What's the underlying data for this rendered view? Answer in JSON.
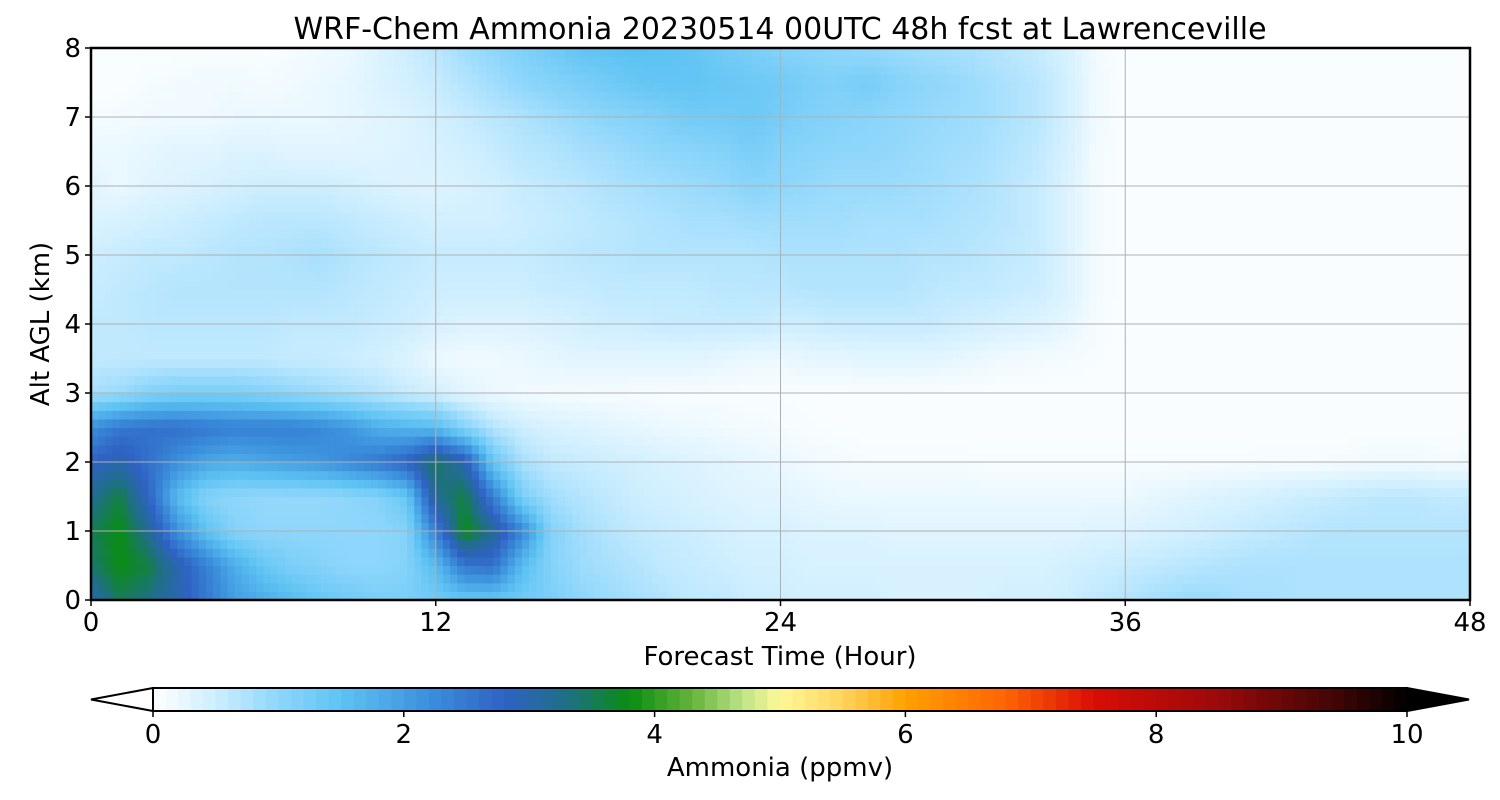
{
  "chart_data": {
    "type": "heatmap",
    "title": "WRF-Chem Ammonia  20230514 00UTC 48h fcst at Lawrenceville",
    "xlabel": "Forecast Time (Hour)",
    "ylabel": "Alt AGL (km)",
    "xlim": [
      0,
      48
    ],
    "ylim": [
      0,
      8
    ],
    "xticks": [
      0,
      12,
      24,
      36,
      48
    ],
    "yticks": [
      0,
      1,
      2,
      3,
      4,
      5,
      6,
      7,
      8
    ],
    "grid": true,
    "colorbar": {
      "label": "Ammonia  (ppmv)",
      "range": [
        0,
        10
      ],
      "ticks": [
        0,
        2,
        4,
        6,
        8,
        10
      ],
      "extend": "both",
      "orientation": "horizontal",
      "placement": "bottom",
      "color_stops": [
        {
          "value": 0.0,
          "color": "#ffffff"
        },
        {
          "value": 0.5,
          "color": "#cdeeff"
        },
        {
          "value": 1.0,
          "color": "#8ed6fb"
        },
        {
          "value": 1.5,
          "color": "#5ec3f3"
        },
        {
          "value": 2.2,
          "color": "#3b8fdc"
        },
        {
          "value": 2.8,
          "color": "#2f62c4"
        },
        {
          "value": 3.3,
          "color": "#1f6f86"
        },
        {
          "value": 3.8,
          "color": "#0a8d13"
        },
        {
          "value": 4.3,
          "color": "#65b33b"
        },
        {
          "value": 4.7,
          "color": "#bde386"
        },
        {
          "value": 5.0,
          "color": "#fff897"
        },
        {
          "value": 5.5,
          "color": "#ffd45e"
        },
        {
          "value": 6.0,
          "color": "#ffa100"
        },
        {
          "value": 6.8,
          "color": "#ff6405"
        },
        {
          "value": 7.5,
          "color": "#d90d05"
        },
        {
          "value": 8.5,
          "color": "#9a0a0a"
        },
        {
          "value": 9.5,
          "color": "#3a0505"
        },
        {
          "value": 10.0,
          "color": "#000000"
        }
      ]
    },
    "x": [
      0,
      1,
      2,
      3,
      4,
      5,
      6,
      7,
      8,
      9,
      10,
      11,
      12,
      13,
      14,
      15,
      16,
      17,
      18,
      19,
      20,
      21,
      22,
      23,
      24,
      25,
      26,
      27,
      28,
      29,
      30,
      31,
      32,
      33,
      34,
      35,
      36,
      37,
      38,
      39,
      40,
      41,
      42,
      43,
      44,
      45,
      46,
      47,
      48
    ],
    "y": [
      0,
      0.5,
      1.0,
      1.5,
      2.0,
      2.5,
      3.0,
      3.5,
      4.0,
      4.5,
      5.0,
      5.5,
      6.0,
      6.5,
      7.0,
      7.5,
      8.0
    ],
    "z": [
      [
        3.0,
        3.5,
        3.3,
        3.0,
        2.5,
        2.0,
        1.8,
        1.6,
        1.4,
        1.3,
        1.2,
        1.2,
        1.3,
        1.4,
        1.4,
        1.3,
        1.2,
        1.0,
        0.9,
        0.8,
        0.7,
        0.6,
        0.6,
        0.5,
        0.5,
        0.45,
        0.45,
        0.45,
        0.4,
        0.4,
        0.4,
        0.4,
        0.45,
        0.45,
        0.5,
        0.6,
        0.7,
        0.8,
        0.9,
        0.9,
        0.8,
        0.8,
        0.75,
        0.75,
        0.75,
        0.75,
        0.75,
        0.75,
        0.75
      ],
      [
        3.4,
        3.8,
        3.6,
        3.0,
        2.4,
        1.8,
        1.4,
        1.2,
        1.1,
        1.0,
        1.0,
        1.1,
        1.6,
        2.5,
        2.6,
        1.6,
        1.1,
        0.9,
        0.8,
        0.7,
        0.6,
        0.55,
        0.5,
        0.45,
        0.45,
        0.4,
        0.4,
        0.4,
        0.4,
        0.4,
        0.4,
        0.4,
        0.4,
        0.4,
        0.45,
        0.5,
        0.55,
        0.6,
        0.65,
        0.7,
        0.75,
        0.75,
        0.75,
        0.75,
        0.75,
        0.75,
        0.75,
        0.75,
        0.75
      ],
      [
        3.5,
        3.8,
        3.2,
        2.2,
        1.5,
        1.1,
        1.0,
        1.0,
        1.0,
        1.0,
        1.0,
        1.1,
        2.4,
        3.8,
        3.2,
        2.3,
        1.1,
        0.85,
        0.7,
        0.6,
        0.55,
        0.5,
        0.45,
        0.4,
        0.4,
        0.35,
        0.35,
        0.35,
        0.3,
        0.3,
        0.3,
        0.3,
        0.3,
        0.3,
        0.3,
        0.35,
        0.35,
        0.4,
        0.45,
        0.5,
        0.55,
        0.6,
        0.65,
        0.7,
        0.7,
        0.7,
        0.7,
        0.7,
        0.7
      ],
      [
        3.2,
        3.6,
        2.8,
        1.6,
        1.1,
        1.0,
        0.95,
        0.95,
        0.95,
        1.0,
        1.1,
        1.4,
        3.2,
        3.6,
        2.4,
        1.2,
        0.85,
        0.7,
        0.6,
        0.5,
        0.45,
        0.4,
        0.35,
        0.3,
        0.3,
        0.25,
        0.2,
        0.2,
        0.2,
        0.2,
        0.2,
        0.2,
        0.2,
        0.2,
        0.2,
        0.2,
        0.2,
        0.25,
        0.3,
        0.35,
        0.4,
        0.45,
        0.5,
        0.55,
        0.6,
        0.65,
        0.65,
        0.6,
        0.6
      ],
      [
        2.8,
        3.0,
        2.6,
        2.2,
        1.9,
        1.8,
        1.9,
        2.0,
        2.1,
        2.3,
        2.5,
        2.8,
        3.5,
        3.0,
        1.4,
        0.8,
        0.6,
        0.55,
        0.5,
        0.45,
        0.4,
        0.35,
        0.3,
        0.25,
        0.2,
        0.15,
        0.12,
        0.1,
        0.1,
        0.1,
        0.1,
        0.08,
        0.08,
        0.08,
        0.08,
        0.08,
        0.08,
        0.08,
        0.08,
        0.08,
        0.08,
        0.1,
        0.1,
        0.1,
        0.12,
        0.15,
        0.15,
        0.12,
        0.12
      ],
      [
        2.2,
        2.5,
        2.6,
        2.6,
        2.5,
        2.4,
        2.4,
        2.4,
        2.3,
        2.1,
        1.8,
        1.7,
        1.6,
        1.1,
        0.7,
        0.5,
        0.4,
        0.35,
        0.3,
        0.25,
        0.2,
        0.18,
        0.15,
        0.12,
        0.1,
        0.08,
        0.06,
        0.05,
        0.05,
        0.05,
        0.05,
        0.05,
        0.05,
        0.05,
        0.05,
        0.05,
        0.05,
        0.05,
        0.05,
        0.05,
        0.05,
        0.05,
        0.05,
        0.05,
        0.05,
        0.05,
        0.05,
        0.05,
        0.05
      ],
      [
        0.8,
        0.9,
        1.1,
        1.2,
        1.2,
        1.2,
        1.1,
        1.0,
        0.9,
        0.8,
        0.7,
        0.55,
        0.45,
        0.3,
        0.2,
        0.15,
        0.12,
        0.1,
        0.1,
        0.08,
        0.08,
        0.08,
        0.08,
        0.07,
        0.07,
        0.06,
        0.05,
        0.05,
        0.05,
        0.05,
        0.05,
        0.05,
        0.05,
        0.05,
        0.05,
        0.05,
        0.05,
        0.05,
        0.05,
        0.05,
        0.05,
        0.05,
        0.05,
        0.05,
        0.05,
        0.05,
        0.05,
        0.05,
        0.05
      ],
      [
        0.6,
        0.6,
        0.6,
        0.6,
        0.6,
        0.6,
        0.6,
        0.55,
        0.55,
        0.5,
        0.45,
        0.35,
        0.2,
        0.15,
        0.15,
        0.2,
        0.25,
        0.3,
        0.3,
        0.3,
        0.3,
        0.3,
        0.25,
        0.2,
        0.2,
        0.25,
        0.25,
        0.3,
        0.3,
        0.3,
        0.25,
        0.2,
        0.15,
        0.12,
        0.1,
        0.08,
        0.05,
        0.05,
        0.05,
        0.05,
        0.05,
        0.05,
        0.05,
        0.05,
        0.05,
        0.05,
        0.05,
        0.05,
        0.05
      ],
      [
        0.6,
        0.6,
        0.65,
        0.65,
        0.65,
        0.65,
        0.65,
        0.6,
        0.6,
        0.6,
        0.55,
        0.5,
        0.4,
        0.35,
        0.35,
        0.35,
        0.4,
        0.45,
        0.5,
        0.5,
        0.55,
        0.55,
        0.55,
        0.55,
        0.5,
        0.5,
        0.55,
        0.55,
        0.55,
        0.55,
        0.5,
        0.45,
        0.4,
        0.35,
        0.25,
        0.1,
        0.05,
        0.05,
        0.05,
        0.05,
        0.05,
        0.05,
        0.05,
        0.05,
        0.05,
        0.05,
        0.05,
        0.05,
        0.05
      ],
      [
        0.55,
        0.6,
        0.65,
        0.7,
        0.7,
        0.7,
        0.7,
        0.7,
        0.7,
        0.65,
        0.6,
        0.55,
        0.5,
        0.5,
        0.5,
        0.5,
        0.55,
        0.55,
        0.6,
        0.6,
        0.6,
        0.6,
        0.65,
        0.65,
        0.65,
        0.7,
        0.7,
        0.7,
        0.7,
        0.65,
        0.6,
        0.6,
        0.55,
        0.5,
        0.35,
        0.12,
        0.05,
        0.05,
        0.05,
        0.05,
        0.05,
        0.05,
        0.05,
        0.05,
        0.05,
        0.05,
        0.05,
        0.05,
        0.05
      ],
      [
        0.5,
        0.55,
        0.6,
        0.6,
        0.65,
        0.7,
        0.7,
        0.75,
        0.8,
        0.7,
        0.65,
        0.6,
        0.55,
        0.55,
        0.55,
        0.55,
        0.6,
        0.65,
        0.65,
        0.7,
        0.7,
        0.7,
        0.7,
        0.7,
        0.75,
        0.75,
        0.75,
        0.75,
        0.75,
        0.7,
        0.7,
        0.65,
        0.6,
        0.55,
        0.35,
        0.12,
        0.05,
        0.05,
        0.05,
        0.05,
        0.05,
        0.05,
        0.05,
        0.05,
        0.05,
        0.05,
        0.05,
        0.05,
        0.05
      ],
      [
        0.35,
        0.4,
        0.45,
        0.5,
        0.55,
        0.6,
        0.65,
        0.65,
        0.65,
        0.6,
        0.55,
        0.5,
        0.45,
        0.45,
        0.45,
        0.5,
        0.55,
        0.6,
        0.65,
        0.7,
        0.75,
        0.8,
        0.8,
        0.85,
        0.85,
        0.85,
        0.85,
        0.8,
        0.8,
        0.8,
        0.75,
        0.7,
        0.65,
        0.55,
        0.35,
        0.12,
        0.05,
        0.05,
        0.05,
        0.05,
        0.05,
        0.05,
        0.05,
        0.05,
        0.05,
        0.05,
        0.05,
        0.05,
        0.05
      ],
      [
        0.3,
        0.2,
        0.3,
        0.35,
        0.4,
        0.45,
        0.5,
        0.5,
        0.5,
        0.45,
        0.4,
        0.35,
        0.35,
        0.4,
        0.45,
        0.55,
        0.6,
        0.65,
        0.75,
        0.8,
        0.85,
        0.9,
        0.95,
        1.05,
        1.0,
        0.95,
        0.9,
        0.9,
        0.9,
        0.85,
        0.8,
        0.75,
        0.65,
        0.55,
        0.35,
        0.12,
        0.05,
        0.05,
        0.05,
        0.05,
        0.05,
        0.05,
        0.05,
        0.05,
        0.05,
        0.05,
        0.05,
        0.05,
        0.05
      ],
      [
        0.2,
        0.2,
        0.25,
        0.3,
        0.3,
        0.35,
        0.35,
        0.3,
        0.3,
        0.3,
        0.3,
        0.35,
        0.4,
        0.45,
        0.55,
        0.65,
        0.7,
        0.8,
        0.85,
        0.95,
        1.0,
        1.05,
        1.1,
        1.2,
        1.1,
        1.05,
        1.0,
        1.0,
        0.95,
        0.9,
        0.85,
        0.8,
        0.7,
        0.6,
        0.4,
        0.12,
        0.05,
        0.05,
        0.05,
        0.05,
        0.05,
        0.05,
        0.05,
        0.05,
        0.05,
        0.05,
        0.05,
        0.05,
        0.05
      ],
      [
        0.1,
        0.12,
        0.15,
        0.15,
        0.15,
        0.2,
        0.2,
        0.2,
        0.2,
        0.25,
        0.3,
        0.35,
        0.45,
        0.55,
        0.65,
        0.75,
        0.85,
        0.95,
        1.05,
        1.1,
        1.2,
        1.3,
        1.3,
        1.35,
        1.25,
        1.15,
        1.1,
        1.05,
        1.0,
        0.95,
        0.9,
        0.85,
        0.75,
        0.65,
        0.45,
        0.15,
        0.05,
        0.05,
        0.05,
        0.05,
        0.05,
        0.05,
        0.05,
        0.05,
        0.05,
        0.05,
        0.05,
        0.05,
        0.05
      ],
      [
        0.05,
        0.05,
        0.1,
        0.12,
        0.15,
        0.15,
        0.12,
        0.15,
        0.2,
        0.25,
        0.35,
        0.45,
        0.55,
        0.7,
        0.85,
        1.0,
        1.1,
        1.2,
        1.3,
        1.4,
        1.45,
        1.45,
        1.4,
        1.35,
        1.3,
        1.2,
        1.15,
        1.25,
        1.1,
        1.0,
        0.95,
        0.85,
        0.75,
        0.65,
        0.45,
        0.15,
        0.05,
        0.05,
        0.05,
        0.05,
        0.05,
        0.05,
        0.05,
        0.05,
        0.05,
        0.05,
        0.05,
        0.05,
        0.05
      ],
      [
        0.05,
        0.05,
        0.05,
        0.05,
        0.05,
        0.05,
        0.05,
        0.1,
        0.15,
        0.2,
        0.35,
        0.5,
        0.65,
        0.85,
        1.0,
        1.15,
        1.3,
        1.45,
        1.5,
        1.55,
        1.5,
        1.45,
        1.3,
        1.2,
        1.1,
        1.05,
        1.0,
        0.95,
        0.9,
        0.85,
        0.8,
        0.75,
        0.65,
        0.55,
        0.4,
        0.12,
        0.05,
        0.05,
        0.05,
        0.05,
        0.05,
        0.05,
        0.05,
        0.05,
        0.05,
        0.05,
        0.05,
        0.05,
        0.05
      ]
    ]
  }
}
